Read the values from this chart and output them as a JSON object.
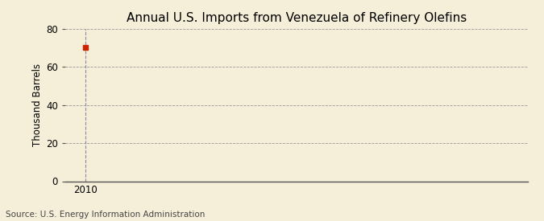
{
  "title": "Annual U.S. Imports from Venezuela of Refinery Olefins",
  "ylabel": "Thousand Barrels",
  "source": "Source: U.S. Energy Information Administration",
  "x_data": [
    2010
  ],
  "y_data": [
    70
  ],
  "marker_color": "#cc2200",
  "marker_style": "s",
  "marker_size": 4,
  "xlim": [
    2009.4,
    2023.0
  ],
  "ylim": [
    0,
    80
  ],
  "yticks": [
    0,
    20,
    40,
    60,
    80
  ],
  "xticks": [
    2010
  ],
  "background_color": "#f5eed8",
  "grid_color": "#999999",
  "vline_color": "#8888aa",
  "title_fontsize": 11,
  "ylabel_fontsize": 8.5,
  "source_fontsize": 7.5,
  "tick_fontsize": 8.5
}
